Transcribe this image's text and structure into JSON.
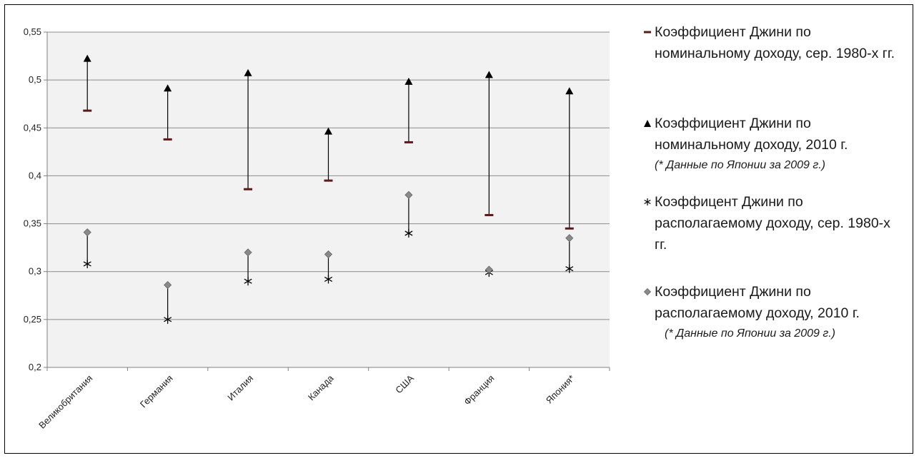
{
  "chart_data": {
    "type": "scatter",
    "categories": [
      "Великобритания",
      "Германия",
      "Италия",
      "Канада",
      "США",
      "Франция",
      "Япония*"
    ],
    "ylim": [
      0.2,
      0.55
    ],
    "y_ticks": [
      "0,2",
      "0,25",
      "0,3",
      "0,35",
      "0,4",
      "0,45",
      "0,5",
      "0,55"
    ],
    "grid": true,
    "legend_position": "right",
    "series": [
      {
        "name": "Коэффициент Джини по номинальному доходу, сер. 1980-х гг.",
        "marker": "dash",
        "color": "#5a1a1a",
        "values": [
          0.468,
          0.438,
          0.386,
          0.395,
          0.435,
          0.359,
          0.345
        ]
      },
      {
        "name": "Коэффициент Джини по номинальному доходу, 2010 г.",
        "marker": "triangle",
        "color": "#000000",
        "note": "(* Данные по Японии за 2009 г.)",
        "values": [
          0.522,
          0.491,
          0.507,
          0.446,
          0.498,
          0.505,
          0.488
        ]
      },
      {
        "name": "Коэффицент Джини по располагаемому доходу, сер. 1980-х гг.",
        "marker": "asterisk",
        "color": "#000000",
        "values": [
          0.308,
          0.25,
          0.29,
          0.292,
          0.34,
          0.299,
          0.303
        ]
      },
      {
        "name": "Коэффициент Джини по располагаемому доходу, 2010 г.",
        "marker": "diamond",
        "color": "#8a8a8a",
        "note": "(* Данные по Японии за 2009 г.)",
        "values": [
          0.341,
          0.286,
          0.32,
          0.318,
          0.38,
          0.302,
          0.335
        ]
      }
    ],
    "colors": {
      "plot_bg": "#f2f2f2",
      "grid": "#8c8c8c",
      "axis": "#808080"
    }
  }
}
